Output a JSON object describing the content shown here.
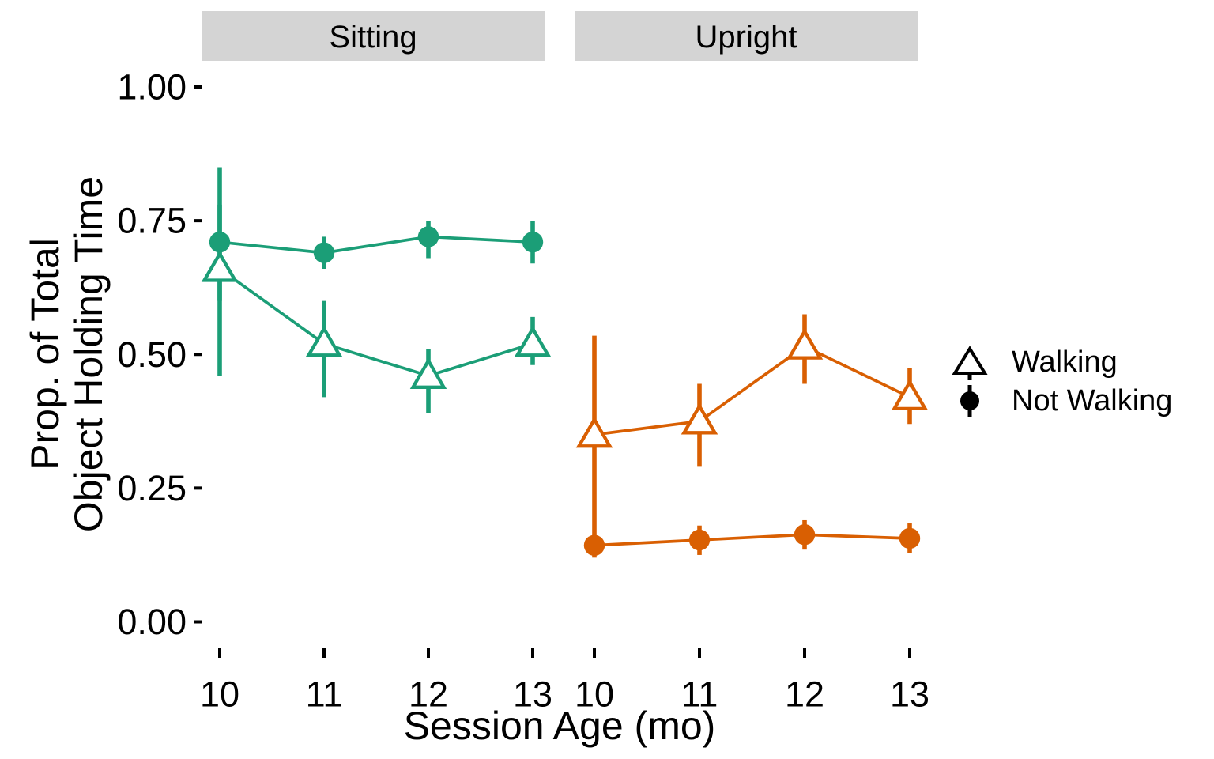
{
  "chart_data": {
    "type": "line",
    "x_axis": {
      "title": "Session Age (mo)",
      "values": [
        10,
        11,
        12,
        13
      ],
      "tick_labels": [
        "10",
        "11",
        "12",
        "13"
      ]
    },
    "y_axis": {
      "title_line1": "Prop. of Total",
      "title_line2": "Object Holding Time",
      "range": [
        0,
        1
      ],
      "ticks": [
        {
          "value": 1.0,
          "label": "1.00"
        },
        {
          "value": 0.75,
          "label": "0.75"
        },
        {
          "value": 0.5,
          "label": "0.50"
        },
        {
          "value": 0.25,
          "label": "0.25"
        },
        {
          "value": 0.0,
          "label": "0.00"
        }
      ]
    },
    "facets": [
      {
        "label": "Sitting",
        "color": "#1b9e77",
        "series": [
          {
            "name": "Walking",
            "marker": "open-triangle",
            "x": [
              10,
              11,
              12,
              13
            ],
            "y": [
              0.66,
              0.52,
              0.46,
              0.52
            ],
            "ymin": [
              0.46,
              0.42,
              0.39,
              0.48
            ],
            "ymax": [
              0.78,
              0.6,
              0.51,
              0.57
            ]
          },
          {
            "name": "Not Walking",
            "marker": "filled-circle",
            "x": [
              10,
              11,
              12,
              13
            ],
            "y": [
              0.71,
              0.69,
              0.72,
              0.71
            ],
            "ymin": [
              0.6,
              0.66,
              0.68,
              0.67
            ],
            "ymax": [
              0.85,
              0.72,
              0.75,
              0.75
            ]
          }
        ]
      },
      {
        "label": "Upright",
        "color": "#d95f02",
        "series": [
          {
            "name": "Walking",
            "marker": "open-triangle",
            "x": [
              10,
              11,
              12,
              13
            ],
            "y": [
              0.35,
              0.375,
              0.515,
              0.42
            ],
            "ymin": [
              0.155,
              0.29,
              0.445,
              0.37
            ],
            "ymax": [
              0.535,
              0.445,
              0.575,
              0.475
            ]
          },
          {
            "name": "Not Walking",
            "marker": "filled-circle",
            "x": [
              10,
              11,
              12,
              13
            ],
            "y": [
              0.143,
              0.153,
              0.163,
              0.156
            ],
            "ymin": [
              0.12,
              0.125,
              0.135,
              0.128
            ],
            "ymax": [
              0.16,
              0.18,
              0.19,
              0.184
            ]
          }
        ]
      }
    ],
    "legend": {
      "position": "right",
      "marker_color": "#000000",
      "entries": [
        {
          "label": "Walking",
          "marker": "open-triangle"
        },
        {
          "label": "Not Walking",
          "marker": "filled-circle"
        }
      ]
    },
    "strip_background": "#d4d4d4",
    "grid": "none"
  }
}
